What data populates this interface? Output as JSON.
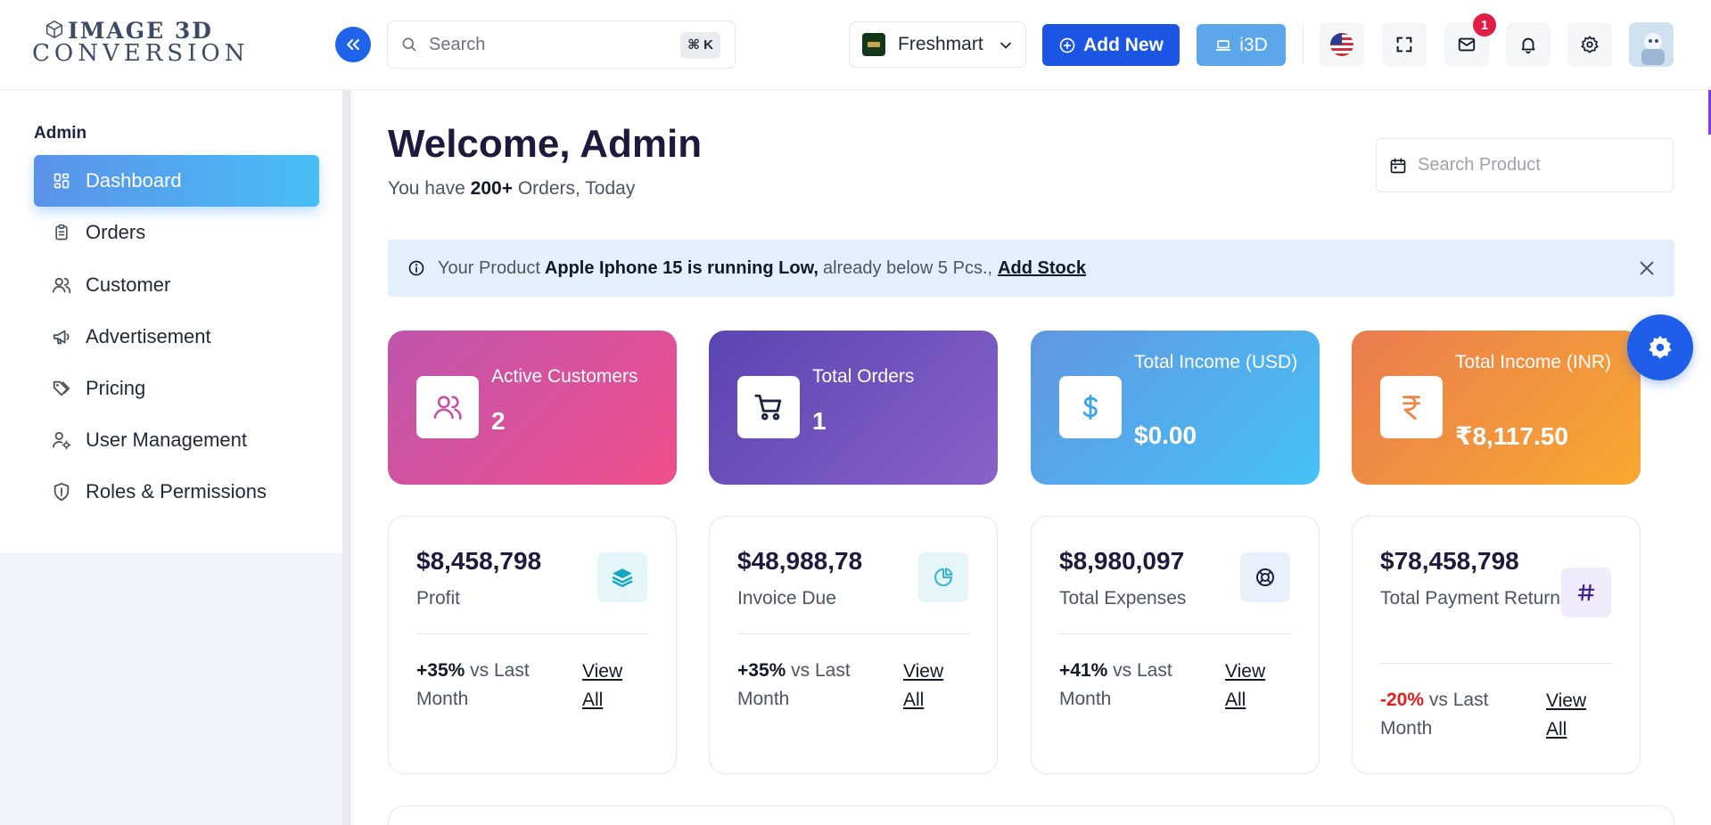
{
  "header": {
    "logo_line1": "IMAGE 3D",
    "logo_line2": "CONVERSION",
    "search_placeholder": "Search",
    "search_shortcut": "⌘ K",
    "store_name": "Freshmart",
    "add_new_label": "Add New",
    "i3d_label": "i3D",
    "notification_count": "1"
  },
  "sidebar": {
    "heading": "Admin",
    "items": [
      {
        "label": "Dashboard",
        "icon": "dashboard-icon",
        "active": true
      },
      {
        "label": "Orders",
        "icon": "clipboard-icon"
      },
      {
        "label": "Customer",
        "icon": "users-icon"
      },
      {
        "label": "Advertisement",
        "icon": "megaphone-icon"
      },
      {
        "label": "Pricing",
        "icon": "tags-icon"
      },
      {
        "label": "User Management",
        "icon": "user-cog-icon"
      },
      {
        "label": "Roles & Permissions",
        "icon": "shield-icon"
      }
    ]
  },
  "main": {
    "welcome": "Welcome, Admin",
    "sub_prefix": "You have",
    "sub_count": "200+",
    "sub_suffix": "Orders, Today",
    "search_product_placeholder": "Search Product",
    "alert": {
      "prefix": "Your Product",
      "product": "Apple Iphone 15 is running Low,",
      "suffix": "already below 5 Pcs.,",
      "action": "Add Stock"
    },
    "stats": [
      {
        "label": "Active Customers",
        "value": "2"
      },
      {
        "label": "Total Orders",
        "value": "1"
      },
      {
        "label": "Total Income (USD)",
        "value": "$0.00"
      },
      {
        "label": "Total Income (INR)",
        "value": "₹8,117.50"
      }
    ],
    "cards": [
      {
        "amount": "$8,458,798",
        "label": "Profit",
        "trend": "+35%",
        "trend_text": "vs Last Month",
        "view": "View All",
        "icon": "layers-icon"
      },
      {
        "amount": "$48,988,78",
        "label": "Invoice Due",
        "trend": "+35%",
        "trend_text": "vs Last Month",
        "view": "View All",
        "icon": "pie-chart-icon"
      },
      {
        "amount": "$8,980,097",
        "label": "Total Expenses",
        "trend": "+41%",
        "trend_text": "vs Last Month",
        "view": "View All",
        "icon": "lifebuoy-icon"
      },
      {
        "amount": "$78,458,798",
        "label": "Total Payment Returns",
        "trend": "-20%",
        "trend_text": "vs Last Month",
        "view": "View All",
        "icon": "hash-icon"
      }
    ]
  },
  "colors": {
    "primary": "#1a55e3",
    "negative": "#e11d1d"
  }
}
